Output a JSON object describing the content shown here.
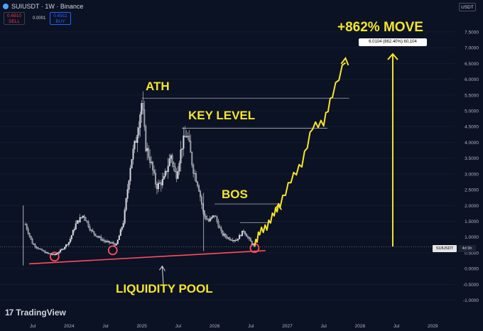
{
  "header": {
    "title": "SUIUSDT · 1W · Binance",
    "sell_price": "0.6910",
    "sell_label": "SELL",
    "spread": "0.0001",
    "buy_price": "0.6911",
    "buy_label": "BUY",
    "currency": "USDT"
  },
  "annotations": {
    "move": "+862% MOVE",
    "tooltip": "6.0104 (862.40%) 60,104",
    "ath": "ATH",
    "key_level": "KEY LEVEL",
    "bos": "BOS",
    "liquidity_pool": "LIQUIDITY POOL",
    "symbol_tag": "SUIUSDT",
    "countdown": "4d 9h"
  },
  "branding": "TradingView",
  "colors": {
    "background": "#0b1224",
    "annotation": "#f5e52a",
    "trendline": "#ff4d5e",
    "candle": "#d8dbe0",
    "level_line": "#c9ccd3"
  },
  "icons": [
    "sui-coin-icon",
    "tradingview-logo-icon"
  ],
  "chart_data": {
    "type": "candlestick",
    "symbol": "SUIUSDT",
    "interval": "1W",
    "exchange": "Binance",
    "x_ticks": [
      "Jul",
      "2024",
      "Jul",
      "2025",
      "Jul",
      "2026",
      "Jul",
      "2027",
      "Jul",
      "2028",
      "Jul",
      "2029"
    ],
    "y_ticks": [
      "7.5000",
      "7.0000",
      "6.5000",
      "6.0000",
      "5.5000",
      "5.0000",
      "4.5000",
      "4.0000",
      "3.5000",
      "3.0000",
      "2.5000",
      "2.0000",
      "1.5000",
      "1.0000",
      "0.5000",
      "0.0000",
      "-0.5000",
      "-1.0000"
    ],
    "ylim": [
      -1.1,
      7.7
    ],
    "current_price": 0.69,
    "price_series": [
      {
        "t": 2023.4,
        "v": 1.4
      },
      {
        "t": 2023.5,
        "v": 0.78
      },
      {
        "t": 2023.6,
        "v": 0.6
      },
      {
        "t": 2023.7,
        "v": 0.48
      },
      {
        "t": 2023.8,
        "v": 0.43
      },
      {
        "t": 2023.9,
        "v": 0.6
      },
      {
        "t": 2024.0,
        "v": 0.85
      },
      {
        "t": 2024.1,
        "v": 1.45
      },
      {
        "t": 2024.2,
        "v": 1.7
      },
      {
        "t": 2024.3,
        "v": 1.2
      },
      {
        "t": 2024.4,
        "v": 1.0
      },
      {
        "t": 2024.5,
        "v": 0.85
      },
      {
        "t": 2024.6,
        "v": 0.8
      },
      {
        "t": 2024.65,
        "v": 0.75
      },
      {
        "t": 2024.75,
        "v": 1.5
      },
      {
        "t": 2024.85,
        "v": 3.4
      },
      {
        "t": 2024.92,
        "v": 4.1
      },
      {
        "t": 2025.0,
        "v": 5.3
      },
      {
        "t": 2025.05,
        "v": 3.9
      },
      {
        "t": 2025.12,
        "v": 3.4
      },
      {
        "t": 2025.2,
        "v": 2.6
      },
      {
        "t": 2025.3,
        "v": 2.8
      },
      {
        "t": 2025.4,
        "v": 3.6
      },
      {
        "t": 2025.47,
        "v": 2.9
      },
      {
        "t": 2025.55,
        "v": 3.9
      },
      {
        "t": 2025.62,
        "v": 4.3
      },
      {
        "t": 2025.7,
        "v": 3.2
      },
      {
        "t": 2025.78,
        "v": 2.6
      },
      {
        "t": 2025.85,
        "v": 1.7
      },
      {
        "t": 2025.92,
        "v": 1.5
      },
      {
        "t": 2026.0,
        "v": 1.7
      },
      {
        "t": 2026.1,
        "v": 1.1
      },
      {
        "t": 2026.2,
        "v": 0.95
      },
      {
        "t": 2026.3,
        "v": 0.9
      },
      {
        "t": 2026.4,
        "v": 1.2
      },
      {
        "t": 2026.48,
        "v": 0.9
      },
      {
        "t": 2026.55,
        "v": 0.69
      }
    ],
    "projection": [
      {
        "t": 2026.55,
        "v": 0.69
      },
      {
        "t": 2026.62,
        "v": 1.15
      },
      {
        "t": 2026.72,
        "v": 1.3
      },
      {
        "t": 2026.82,
        "v": 1.75
      },
      {
        "t": 2026.9,
        "v": 2.0
      },
      {
        "t": 2027.05,
        "v": 2.8
      },
      {
        "t": 2027.2,
        "v": 3.3
      },
      {
        "t": 2027.35,
        "v": 4.5
      },
      {
        "t": 2027.5,
        "v": 4.6
      },
      {
        "t": 2027.62,
        "v": 5.5
      },
      {
        "t": 2027.8,
        "v": 6.6
      }
    ],
    "levels": {
      "ath": 5.4,
      "key_level": 4.45,
      "bos": 2.05,
      "bos_minor": 1.45
    },
    "liquidity_trendline": [
      {
        "t": 2023.45,
        "v": 0.15
      },
      {
        "t": 2026.7,
        "v": 0.57
      }
    ],
    "circled_lows": [
      {
        "t": 2023.8,
        "v": 0.38
      },
      {
        "t": 2024.6,
        "v": 0.58
      },
      {
        "t": 2026.55,
        "v": 0.65
      }
    ],
    "move_arrow": {
      "t": 2028.45,
      "from": 0.7,
      "to": 6.8
    }
  }
}
